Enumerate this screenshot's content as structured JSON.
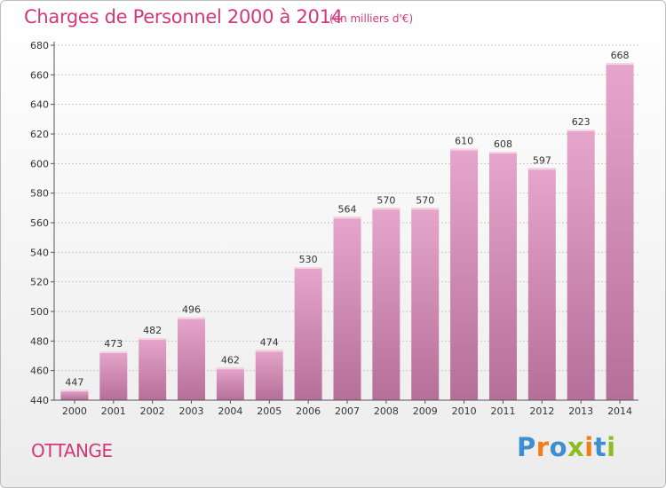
{
  "chart_data": {
    "type": "bar",
    "title": "Charges de Personnel 2000 à 2014",
    "subtitle": "(en milliers d'€)",
    "categories": [
      "2000",
      "2001",
      "2002",
      "2003",
      "2004",
      "2005",
      "2006",
      "2007",
      "2008",
      "2009",
      "2010",
      "2011",
      "2012",
      "2013",
      "2014"
    ],
    "values": [
      447,
      473,
      482,
      496,
      462,
      474,
      530,
      564,
      570,
      570,
      610,
      608,
      597,
      623,
      668
    ],
    "ylim": [
      440,
      680
    ],
    "yticks": [
      440,
      460,
      480,
      500,
      520,
      540,
      560,
      580,
      600,
      620,
      640,
      660,
      680
    ],
    "grid": true,
    "bar_color": "#d98cb5"
  },
  "commune": "OTTANGE",
  "logo": {
    "text": "Proxiti",
    "letters": [
      {
        "ch": "P",
        "color": "#3d8fd1"
      },
      {
        "ch": "r",
        "color": "#ef7d1a"
      },
      {
        "ch": "o",
        "color": "#3d8fd1"
      },
      {
        "ch": "x",
        "color": "#8dbd22"
      },
      {
        "ch": "i",
        "color": "#ef7d1a"
      },
      {
        "ch": "t",
        "color": "#3d8fd1"
      },
      {
        "ch": "i",
        "color": "#8dbd22"
      }
    ]
  },
  "colors": {
    "accent": "#d2387a",
    "axis": "#555555",
    "grid": "#c8c8c8"
  }
}
